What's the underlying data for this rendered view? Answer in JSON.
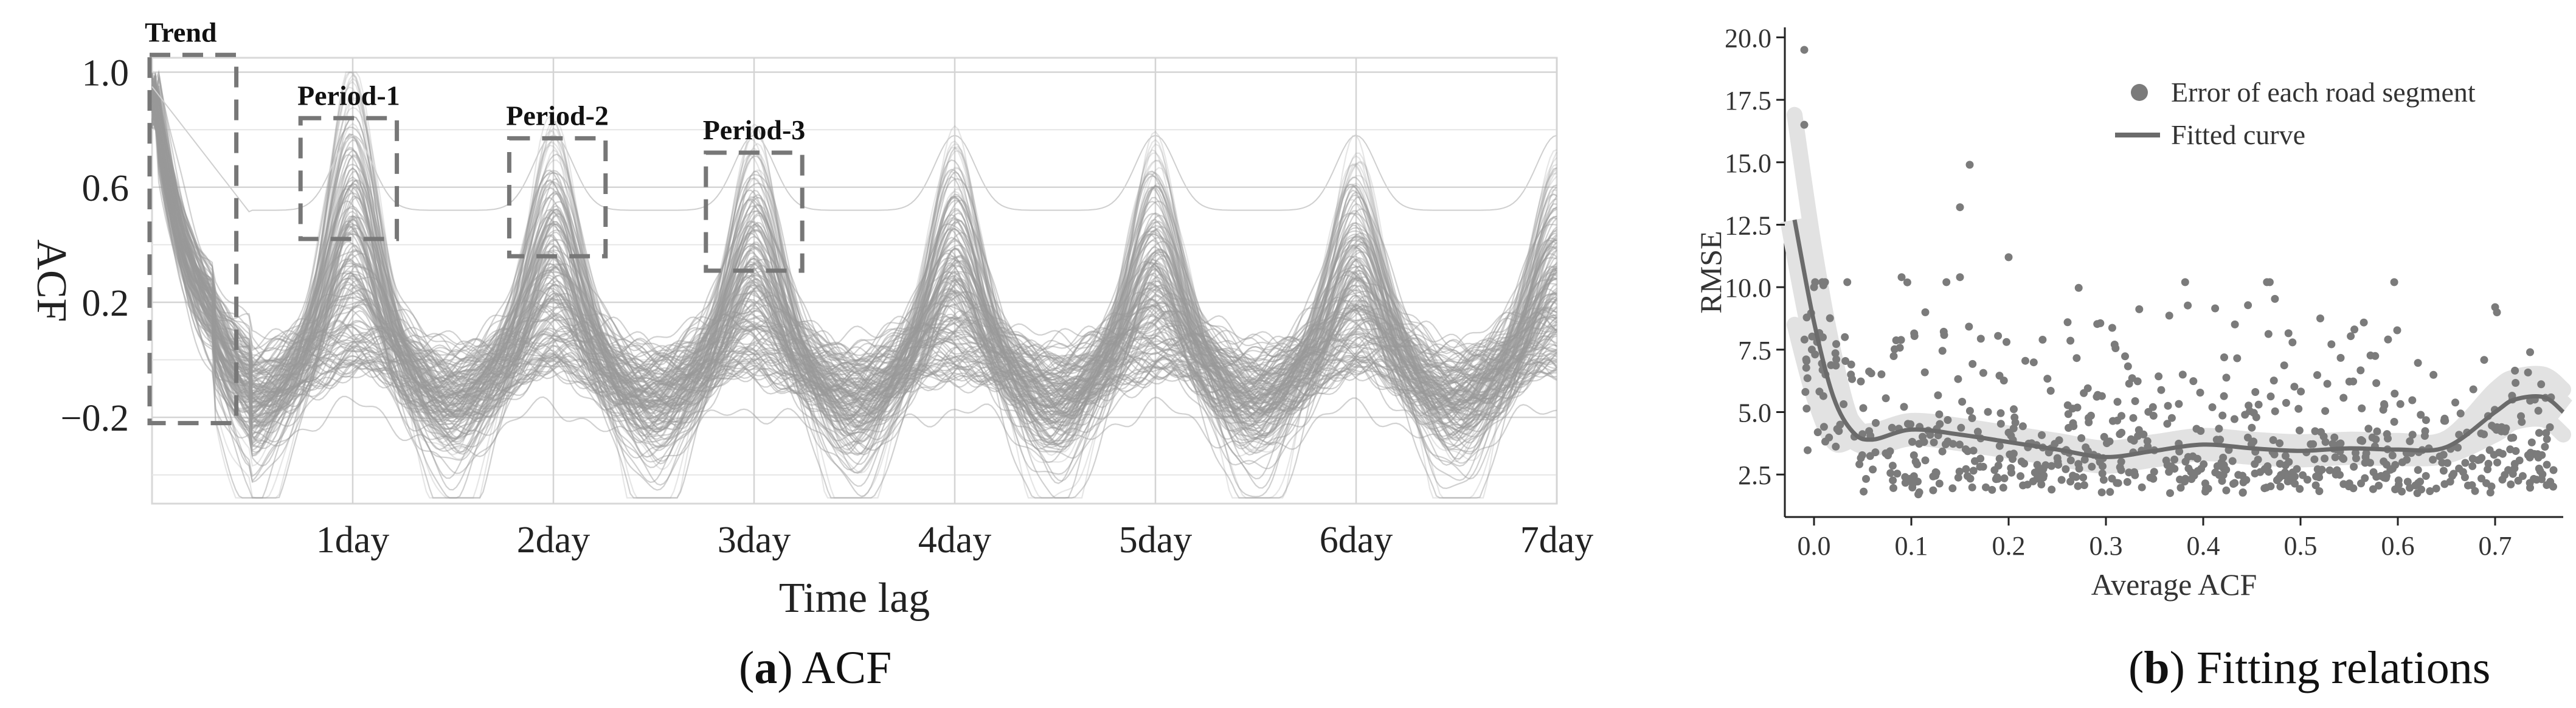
{
  "chart_data": [
    {
      "type": "line",
      "panel": "a",
      "caption_letter": "a",
      "caption_text": "ACF",
      "xlabel": "Time lag",
      "ylabel": "ACF",
      "x_ticks": [
        "1day",
        "2day",
        "3day",
        "4day",
        "5day",
        "6day",
        "7day"
      ],
      "y_ticks": [
        1.0,
        0.6,
        0.2,
        -0.2
      ],
      "y_tick_labels": [
        "1.0",
        "0.6",
        "0.2",
        "−0.2"
      ],
      "xlim": [
        0,
        7
      ],
      "ylim": [
        -0.5,
        1.05
      ],
      "grid": true,
      "series_color": "#9a9a9a",
      "description_peaks": [
        {
          "x": 1,
          "peak": 0.76
        },
        {
          "x": 2,
          "peak": 0.62
        },
        {
          "x": 3,
          "peak": 0.58
        },
        {
          "x": 4,
          "peak": 0.56
        },
        {
          "x": 5,
          "peak": 0.55
        },
        {
          "x": 6,
          "peak": 0.54
        },
        {
          "x": 7,
          "peak": 0.53
        }
      ],
      "annotations": [
        {
          "label": "Trend",
          "x_range": [
            0,
            0.42
          ],
          "y_range": [
            -0.22,
            1.06
          ]
        },
        {
          "label": "Period-1",
          "x_range": [
            0.74,
            1.22
          ],
          "y_range": [
            0.42,
            0.84
          ]
        },
        {
          "label": "Period-2",
          "x_range": [
            1.78,
            2.26
          ],
          "y_range": [
            0.36,
            0.77
          ]
        },
        {
          "label": "Period-3",
          "x_range": [
            2.76,
            3.24
          ],
          "y_range": [
            0.31,
            0.72
          ]
        }
      ]
    },
    {
      "type": "scatter",
      "panel": "b",
      "caption_letter": "b",
      "caption_text": "Fitting relations",
      "xlabel": "Average ACF",
      "ylabel": "RMSE",
      "xlim": [
        -0.03,
        0.77
      ],
      "ylim": [
        0.8,
        20.4
      ],
      "x_ticks": [
        0.0,
        0.1,
        0.2,
        0.3,
        0.4,
        0.5,
        0.6,
        0.7
      ],
      "x_tick_labels": [
        "0.0",
        "0.1",
        "0.2",
        "0.3",
        "0.4",
        "0.5",
        "0.6",
        "0.7"
      ],
      "y_ticks": [
        2.5,
        5.0,
        7.5,
        10.0,
        12.5,
        15.0,
        17.5,
        20.0
      ],
      "y_tick_labels": [
        "2.5",
        "5.0",
        "7.5",
        "10.0",
        "12.5",
        "15.0",
        "17.5",
        "20.0"
      ],
      "grid": false,
      "legend": {
        "position": "top-right",
        "entries": [
          {
            "label": "Error of each road segment",
            "marker": "dot",
            "color": "#7b7b7b"
          },
          {
            "label": "Fitted curve",
            "marker": "line",
            "color": "#6b6b6b"
          }
        ]
      },
      "fitted_curve": {
        "name": "Fitted curve",
        "x": [
          -0.02,
          0.0,
          0.02,
          0.04,
          0.06,
          0.1,
          0.15,
          0.2,
          0.25,
          0.3,
          0.35,
          0.4,
          0.45,
          0.5,
          0.55,
          0.6,
          0.65,
          0.7,
          0.72,
          0.75,
          0.77
        ],
        "y": [
          12.7,
          8.6,
          5.6,
          4.2,
          3.9,
          4.3,
          4.1,
          3.8,
          3.5,
          3.2,
          3.45,
          3.7,
          3.55,
          3.45,
          3.55,
          3.5,
          3.6,
          5.0,
          5.5,
          5.6,
          5.0
        ]
      },
      "outliers": [
        {
          "x": -0.01,
          "y": 19.5
        },
        {
          "x": -0.01,
          "y": 16.5
        },
        {
          "x": 0.16,
          "y": 14.9
        },
        {
          "x": 0.15,
          "y": 13.2
        },
        {
          "x": 0.2,
          "y": 11.2
        },
        {
          "x": 0.09,
          "y": 10.4
        },
        {
          "x": 0.15,
          "y": 10.4
        },
        {
          "x": 0.7,
          "y": 9.2
        },
        {
          "x": 0.0,
          "y": 10.0
        }
      ],
      "scatter_color": "#7b7b7b"
    }
  ]
}
